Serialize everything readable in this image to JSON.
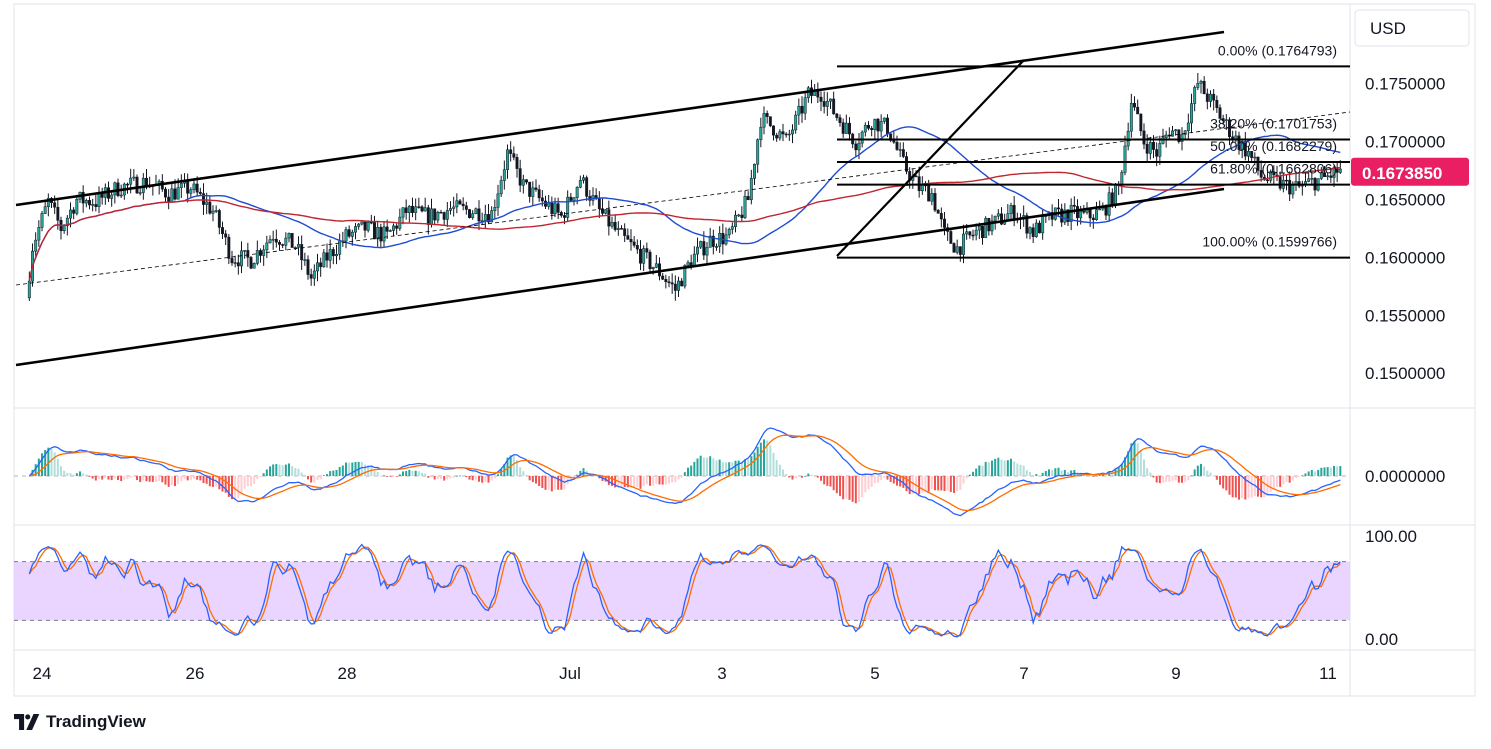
{
  "currency_label": "USD",
  "brand": "TradingView",
  "colors": {
    "up": "#26a69a",
    "down": "#ef5350",
    "candle_dark": "#131722",
    "ma_fast": "#1e4bd2",
    "ma_slow": "#c2252f",
    "line_black": "#000000",
    "price_tag_bg": "#e91e63",
    "macd_line": "#2962ff",
    "signal_line": "#ff6d00",
    "hist_up": "#26a69a",
    "hist_up_light": "#b2dfdb",
    "hist_down": "#ef5350",
    "hist_down_light": "#ffcdd2",
    "stoch_k": "#2962ff",
    "stoch_d": "#ff6d00",
    "stoch_band": "#e1c7ff"
  },
  "chart_data": [
    {
      "type": "candlestick",
      "pane": "price",
      "x_ticks": [
        "24",
        "26",
        "28",
        "Jul",
        "3",
        "5",
        "7",
        "9",
        "11"
      ],
      "y_ticks": [
        "0.1750000",
        "0.1700000",
        "0.1650000",
        "0.1600000",
        "0.1550000",
        "0.1500000"
      ],
      "ylim": [
        0.147,
        0.181
      ],
      "last_price": "0.1673850",
      "fib_levels": [
        {
          "label": "0.00% (0.1764793)",
          "value": 0.1764793
        },
        {
          "label": "38.20% (0.1701753)",
          "value": 0.1701753
        },
        {
          "label": "50.00% (0.1682279)",
          "value": 0.1682279
        },
        {
          "label": "61.80% (0.1662806)",
          "value": 0.1662806
        },
        {
          "label": "100.00% (0.1599766)",
          "value": 0.1599766
        }
      ],
      "moving_averages": [
        "fast (blue)",
        "slow (red)"
      ],
      "price_path": [
        [
          "Jun 23 20:00",
          0.1565
        ],
        [
          "Jun 23 22:00",
          0.161
        ],
        [
          "Jun 24 03:00",
          0.1648
        ],
        [
          "Jun 24 07:00",
          0.1625
        ],
        [
          "Jun 24 12:00",
          0.165
        ],
        [
          "Jun 24 18:00",
          0.1648
        ],
        [
          "Jun 25 01:00",
          0.166
        ],
        [
          "Jun 25 10:00",
          0.1665
        ],
        [
          "Jun 25 17:00",
          0.1655
        ],
        [
          "Jun 26 00:00",
          0.166
        ],
        [
          "Jun 26 07:00",
          0.164
        ],
        [
          "Jun 26 13:00",
          0.16
        ],
        [
          "Jun 26 19:00",
          0.1598
        ],
        [
          "Jun 27 02:00",
          0.162
        ],
        [
          "Jun 27 09:00",
          0.161
        ],
        [
          "Jun 27 14:00",
          0.1582
        ],
        [
          "Jun 27 19:00",
          0.16
        ],
        [
          "Jun 28 01:00",
          0.1618
        ],
        [
          "Jun 28 07:00",
          0.1625
        ],
        [
          "Jun 28 14:00",
          0.1618
        ],
        [
          "Jun 28 20:00",
          0.164
        ],
        [
          "Jun 29 03:00",
          0.1635
        ],
        [
          "Jun 29 10:00",
          0.1642
        ],
        [
          "Jun 29 17:00",
          0.164
        ],
        [
          "Jun 29 23:00",
          0.1638
        ],
        [
          "Jun 30 04:00",
          0.169
        ],
        [
          "Jun 30 09:00",
          0.1662
        ],
        [
          "Jun 30 15:00",
          0.1648
        ],
        [
          "Jun 30 21:00",
          0.1635
        ],
        [
          "Jul 1 03:00",
          0.1668
        ],
        [
          "Jul 1 09:00",
          0.164
        ],
        [
          "Jul 1 15:00",
          0.162
        ],
        [
          "Jul 1 21:00",
          0.1605
        ],
        [
          "Jul 2 03:00",
          0.159
        ],
        [
          "Jul 2 09:00",
          0.1572
        ],
        [
          "Jul 2 14:00",
          0.1598
        ],
        [
          "Jul 2 20:00",
          0.1615
        ],
        [
          "Jul 3 02:00",
          0.1618
        ],
        [
          "Jul 3 08:00",
          0.165
        ],
        [
          "Jul 3 12:00",
          0.172
        ],
        [
          "Jul 3 16:00",
          0.1712
        ],
        [
          "Jul 3 20:00",
          0.17
        ],
        [
          "Jul 4 03:00",
          0.174
        ],
        [
          "Jul 4 07:00",
          0.1742
        ],
        [
          "Jul 4 12:00",
          0.1722
        ],
        [
          "Jul 4 18:00",
          0.17
        ],
        [
          "Jul 4 23:00",
          0.1718
        ],
        [
          "Jul 5 04:00",
          0.1712
        ],
        [
          "Jul 5 09:00",
          0.168
        ],
        [
          "Jul 5 14:00",
          0.166
        ],
        [
          "Jul 5 18:00",
          0.1655
        ],
        [
          "Jul 5 22:00",
          0.162
        ],
        [
          "Jul 6 02:00",
          0.1608
        ],
        [
          "Jul 6 08:00",
          0.1622
        ],
        [
          "Jul 6 14:00",
          0.163
        ],
        [
          "Jul 6 20:00",
          0.164
        ],
        [
          "Jul 7 02:00",
          0.1622
        ],
        [
          "Jul 7 08:00",
          0.1635
        ],
        [
          "Jul 7 14:00",
          0.1638
        ],
        [
          "Jul 7 19:00",
          0.1635
        ],
        [
          "Jul 8 00:00",
          0.164
        ],
        [
          "Jul 8 05:00",
          0.166
        ],
        [
          "Jul 8 09:00",
          0.1735
        ],
        [
          "Jul 8 13:00",
          0.17
        ],
        [
          "Jul 8 17:00",
          0.169
        ],
        [
          "Jul 8 21:00",
          0.171
        ],
        [
          "Jul 9 01:00",
          0.1705
        ],
        [
          "Jul 9 06:00",
          0.175
        ],
        [
          "Jul 9 10:00",
          0.1735
        ],
        [
          "Jul 9 14:00",
          0.1718
        ],
        [
          "Jul 9 18:00",
          0.1702
        ],
        [
          "Jul 9 22:00",
          0.169
        ],
        [
          "Jul 10 02:00",
          0.167
        ],
        [
          "Jul 10 06:00",
          0.1665
        ],
        [
          "Jul 10 10:00",
          0.1662
        ],
        [
          "Jul 10 14:00",
          0.166
        ],
        [
          "Jul 10 18:00",
          0.1665
        ],
        [
          "Jul 10 22:00",
          0.1668
        ],
        [
          "Jul 11 02:00",
          0.1674
        ]
      ]
    },
    {
      "type": "line",
      "pane": "macd",
      "y_ticks": [
        "0.0000000"
      ],
      "series": [
        {
          "values_shape": "MACD line (blue) / signal (orange) / histogram"
        }
      ]
    },
    {
      "type": "line",
      "pane": "stochastic",
      "y_ticks": [
        "100.00",
        "0.00"
      ],
      "band": [
        20,
        80
      ]
    }
  ]
}
